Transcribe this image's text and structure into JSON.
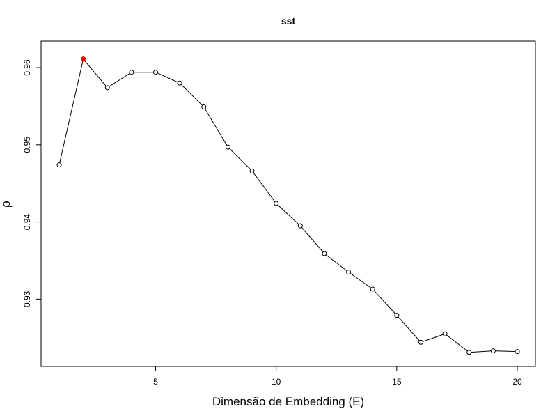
{
  "chart_data": {
    "type": "line",
    "title": "sst",
    "xlabel": "Dimensão de Embedding (E)",
    "ylabel": "ρ",
    "xlim": [
      1,
      20
    ],
    "ylim": [
      0.9229,
      0.9619
    ],
    "x_ticks": [
      5,
      10,
      15,
      20
    ],
    "y_ticks": [
      0.93,
      0.94,
      0.95,
      0.96
    ],
    "y_tick_labels": [
      "0.93",
      "0.94",
      "0.95",
      "0.96"
    ],
    "grid": false,
    "x": [
      1,
      2,
      3,
      4,
      5,
      6,
      7,
      8,
      9,
      10,
      11,
      12,
      13,
      14,
      15,
      16,
      17,
      18,
      19,
      20
    ],
    "y": [
      0.9474,
      0.9611,
      0.9574,
      0.9594,
      0.9594,
      0.958,
      0.9549,
      0.9497,
      0.9466,
      0.9424,
      0.9395,
      0.9359,
      0.9335,
      0.9313,
      0.9279,
      0.9244,
      0.9255,
      0.9231,
      0.9233,
      0.9232
    ],
    "highlight_index": 1,
    "colors": {
      "line": "#000000",
      "point": "#000000",
      "highlight": "#ff0000"
    }
  }
}
